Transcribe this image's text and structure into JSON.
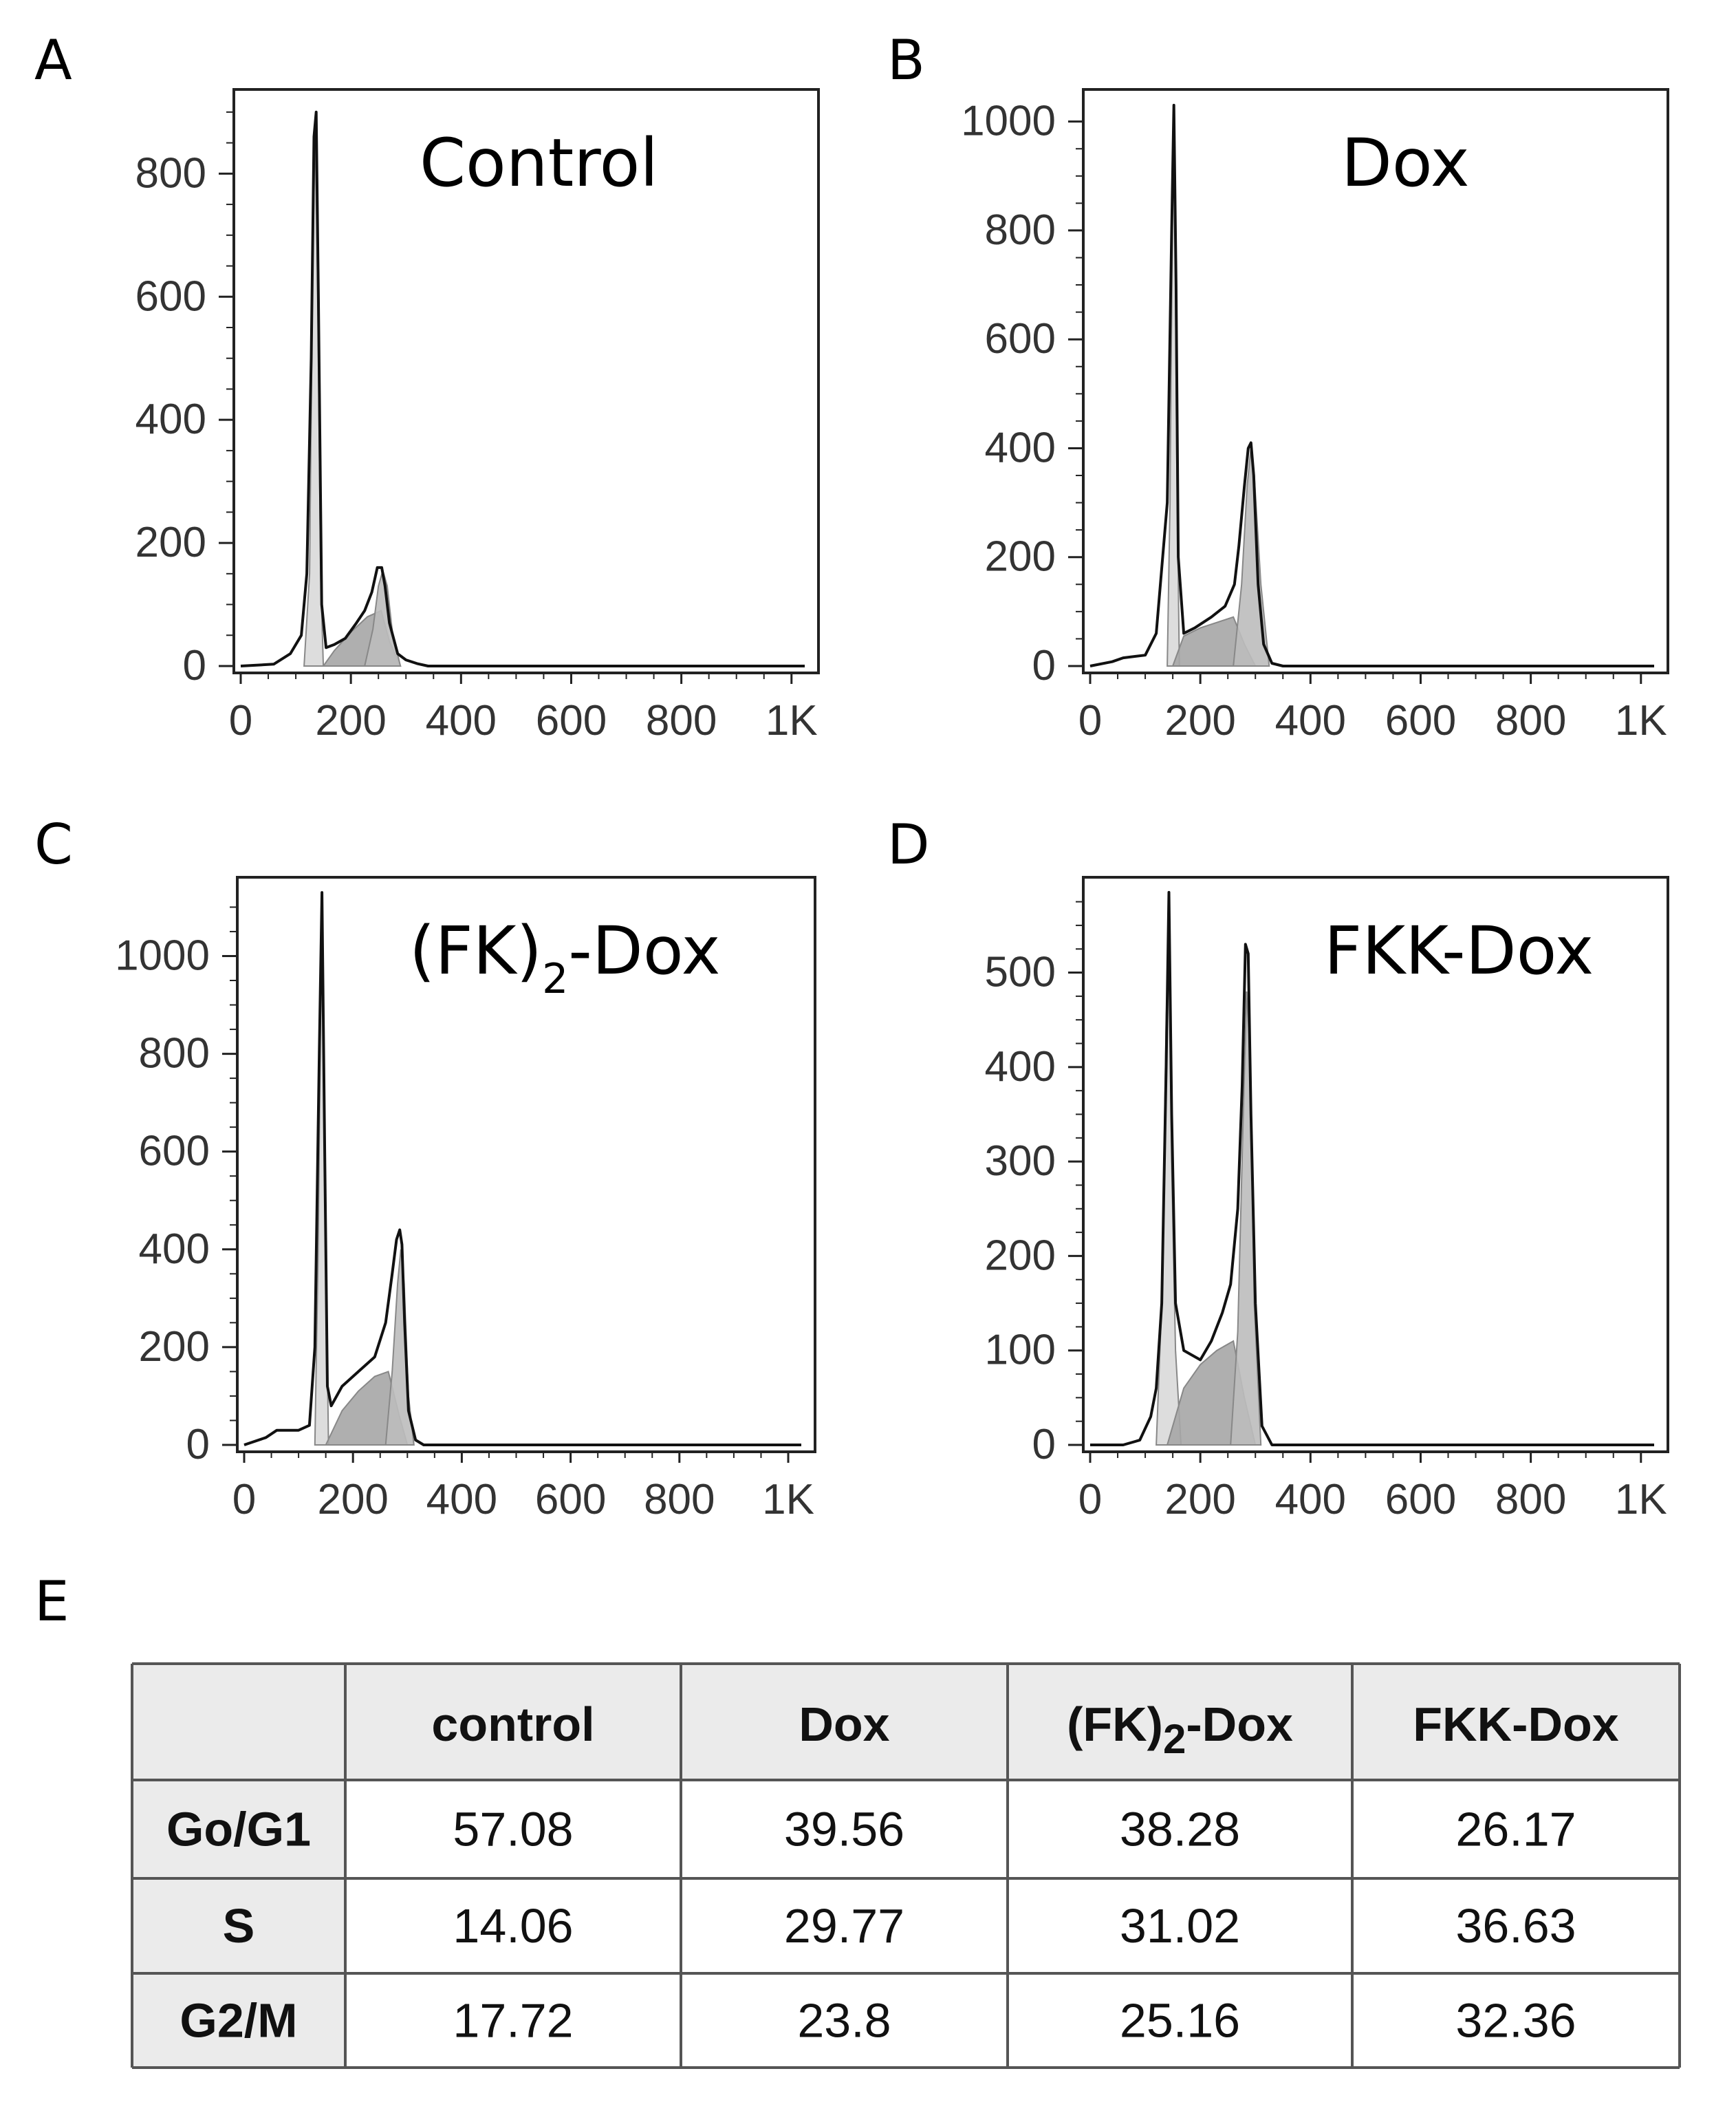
{
  "chart_data": [
    {
      "type": "area",
      "panel": "A",
      "title": "Control",
      "x_ticks": [
        "0",
        "200",
        "400",
        "600",
        "800",
        "1K"
      ],
      "y_ticks": [
        "0",
        "200",
        "400",
        "600",
        "800"
      ],
      "xlim": [
        0,
        1024
      ],
      "ylim": [
        0,
        920
      ],
      "series": [
        {
          "name": "histogram",
          "x": [
            0,
            60,
            90,
            110,
            120,
            128,
            133,
            137,
            141,
            147,
            155,
            170,
            190,
            210,
            225,
            238,
            248,
            256,
            262,
            270,
            285,
            300,
            320,
            340,
            360,
            1024
          ],
          "y": [
            0,
            3,
            20,
            50,
            150,
            500,
            860,
            900,
            600,
            100,
            30,
            35,
            45,
            70,
            90,
            120,
            160,
            160,
            130,
            70,
            20,
            10,
            4,
            0,
            0,
            0
          ]
        },
        {
          "name": "G1",
          "x": [
            115,
            125,
            130,
            135,
            140,
            145,
            150
          ],
          "y": [
            0,
            150,
            600,
            880,
            600,
            150,
            0
          ]
        },
        {
          "name": "S",
          "x": [
            150,
            170,
            200,
            230,
            255,
            270,
            290
          ],
          "y": [
            0,
            25,
            55,
            80,
            90,
            40,
            0
          ]
        },
        {
          "name": "G2/M",
          "x": [
            225,
            240,
            250,
            258,
            266,
            276,
            290
          ],
          "y": [
            0,
            60,
            130,
            155,
            130,
            50,
            0
          ]
        }
      ]
    },
    {
      "type": "area",
      "panel": "B",
      "title": "Dox",
      "x_ticks": [
        "0",
        "200",
        "400",
        "600",
        "800",
        "1K"
      ],
      "y_ticks": [
        "0",
        "200",
        "400",
        "600",
        "800",
        "1000"
      ],
      "xlim": [
        0,
        1024
      ],
      "ylim": [
        0,
        1040
      ],
      "series": [
        {
          "name": "histogram",
          "x": [
            0,
            40,
            60,
            100,
            120,
            140,
            148,
            152,
            156,
            160,
            170,
            190,
            220,
            245,
            262,
            270,
            280,
            287,
            292,
            297,
            305,
            315,
            330,
            350,
            1024
          ],
          "y": [
            0,
            8,
            15,
            20,
            60,
            300,
            800,
            1030,
            700,
            200,
            60,
            70,
            90,
            110,
            150,
            220,
            330,
            400,
            410,
            350,
            150,
            40,
            5,
            0,
            0
          ]
        },
        {
          "name": "G1",
          "x": [
            140,
            145,
            150,
            153,
            157,
            162
          ],
          "y": [
            0,
            300,
            900,
            980,
            400,
            0
          ]
        },
        {
          "name": "S",
          "x": [
            150,
            170,
            200,
            230,
            260,
            280,
            300
          ],
          "y": [
            0,
            55,
            70,
            80,
            90,
            40,
            0
          ]
        },
        {
          "name": "G2/M",
          "x": [
            260,
            275,
            285,
            292,
            298,
            310,
            325
          ],
          "y": [
            0,
            150,
            330,
            400,
            350,
            150,
            0
          ]
        }
      ]
    },
    {
      "type": "area",
      "panel": "C",
      "title": "(FK)",
      "title_sub": "2",
      "title_suffix": "-Dox",
      "x_ticks": [
        "0",
        "200",
        "400",
        "600",
        "800",
        "1K"
      ],
      "y_ticks": [
        "0",
        "200",
        "400",
        "600",
        "800",
        "1000"
      ],
      "xlim": [
        0,
        1024
      ],
      "ylim": [
        0,
        1140
      ],
      "series": [
        {
          "name": "histogram",
          "x": [
            0,
            40,
            60,
            100,
            120,
            130,
            138,
            143,
            148,
            153,
            160,
            180,
            210,
            240,
            260,
            272,
            280,
            286,
            290,
            295,
            302,
            315,
            330,
            1024
          ],
          "y": [
            0,
            15,
            30,
            30,
            40,
            200,
            800,
            1130,
            600,
            120,
            80,
            120,
            150,
            180,
            250,
            350,
            420,
            440,
            410,
            250,
            70,
            10,
            0,
            0
          ]
        },
        {
          "name": "G1",
          "x": [
            130,
            136,
            141,
            145,
            150,
            155
          ],
          "y": [
            0,
            400,
            950,
            1000,
            400,
            0
          ]
        },
        {
          "name": "S",
          "x": [
            150,
            180,
            210,
            240,
            265,
            285,
            300
          ],
          "y": [
            0,
            70,
            110,
            140,
            150,
            60,
            0
          ]
        },
        {
          "name": "G2/M",
          "x": [
            260,
            272,
            282,
            288,
            294,
            302,
            312
          ],
          "y": [
            0,
            150,
            330,
            400,
            330,
            100,
            0
          ]
        }
      ]
    },
    {
      "type": "area",
      "panel": "D",
      "title": "FKK-Dox",
      "x_ticks": [
        "0",
        "200",
        "400",
        "600",
        "800",
        "1K"
      ],
      "y_ticks": [
        "0",
        "100",
        "200",
        "300",
        "400",
        "500"
      ],
      "xlim": [
        0,
        1024
      ],
      "ylim": [
        0,
        590
      ],
      "series": [
        {
          "name": "histogram",
          "x": [
            0,
            60,
            90,
            110,
            120,
            130,
            138,
            143,
            148,
            155,
            170,
            200,
            220,
            240,
            255,
            268,
            276,
            282,
            287,
            292,
            300,
            312,
            330,
            1024
          ],
          "y": [
            0,
            0,
            5,
            30,
            60,
            150,
            400,
            585,
            350,
            150,
            100,
            90,
            110,
            140,
            170,
            250,
            380,
            530,
            520,
            350,
            150,
            20,
            0,
            0
          ]
        },
        {
          "name": "G1",
          "x": [
            120,
            130,
            138,
            143,
            148,
            155,
            165
          ],
          "y": [
            0,
            150,
            450,
            540,
            300,
            100,
            0
          ]
        },
        {
          "name": "S",
          "x": [
            140,
            170,
            200,
            230,
            260,
            280,
            300
          ],
          "y": [
            0,
            60,
            85,
            100,
            110,
            50,
            0
          ]
        },
        {
          "name": "G2/M",
          "x": [
            255,
            268,
            278,
            284,
            290,
            298,
            310
          ],
          "y": [
            0,
            120,
            350,
            480,
            420,
            150,
            0
          ]
        }
      ]
    },
    {
      "type": "table",
      "panel": "E",
      "columns": [
        "",
        "control",
        "Dox",
        "(FK)2-Dox",
        "FKK-Dox"
      ],
      "rows": [
        {
          "label": "Go/G1",
          "values": [
            "57.08",
            "39.56",
            "38.28",
            "26.17"
          ]
        },
        {
          "label": "S",
          "values": [
            "14.06",
            "29.77",
            "31.02",
            "36.63"
          ]
        },
        {
          "label": "G2/M",
          "values": [
            "17.72",
            "23.8",
            "25.16",
            "32.36"
          ]
        }
      ]
    }
  ],
  "colors": {
    "histogram_line": "#111111",
    "g1_fill": "#d9d9d9",
    "s_fill": "#a6a6a6",
    "g2m_fill": "#bdbdbd",
    "table_header_bg": "#ebebeb",
    "table_border": "#555555"
  }
}
